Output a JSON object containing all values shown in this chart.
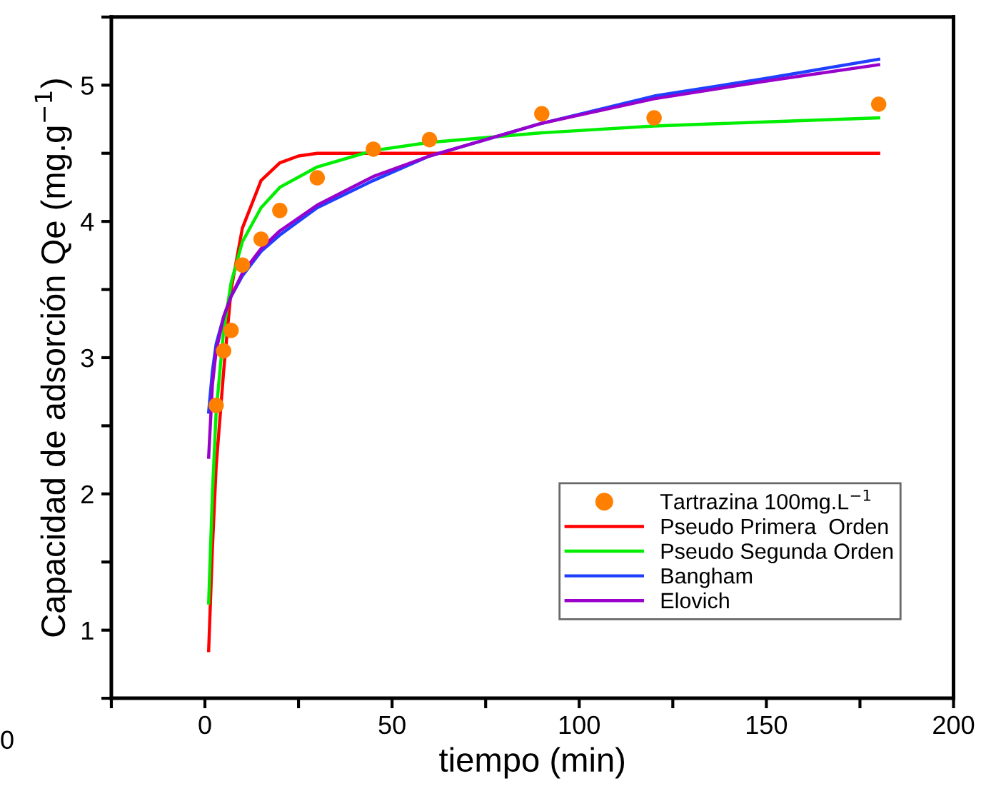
{
  "chart_data": {
    "type": "line",
    "xlabel": "tiempo (min)",
    "ylabel": "Capacidad de adsorción Qe (mg.g$^{−1}$)",
    "xlim": [
      -25,
      200
    ],
    "ylim": [
      0.5,
      5.5
    ],
    "xticks": [
      {
        "value": -25,
        "label": null
      },
      0,
      {
        "value": 25,
        "label": null
      },
      50,
      {
        "value": 75,
        "label": null
      },
      100,
      {
        "value": 125,
        "label": null
      },
      150,
      {
        "value": 175,
        "label": null
      },
      200
    ],
    "yticks": [
      {
        "value": 0.5,
        "label": null
      },
      1,
      {
        "value": 1.5,
        "label": null
      },
      2,
      {
        "value": 2.5,
        "label": null
      },
      3,
      {
        "value": 3.5,
        "label": null
      },
      4,
      {
        "value": 4.5,
        "label": null
      },
      5,
      {
        "value": 5.5,
        "label": null
      }
    ],
    "grid": false,
    "legend": "lower right",
    "annotations": [
      "0"
    ],
    "series": [
      {
        "name": "Tartrazina 100mg.L$^{−1}$",
        "type": "scatter",
        "marker": "circle",
        "color": "#ff8000",
        "x": [
          3,
          5,
          7,
          10,
          15,
          20,
          30,
          45,
          60,
          90,
          120,
          180
        ],
        "values": [
          2.65,
          3.05,
          3.2,
          3.68,
          3.87,
          4.08,
          4.32,
          4.53,
          4.6,
          4.79,
          4.76,
          4.86
        ]
      },
      {
        "name": "Pseudo Primera  Orden",
        "color": "#ff0000",
        "x": [
          1,
          2,
          3,
          5,
          7,
          10,
          15,
          20,
          25,
          30,
          60,
          90,
          120,
          150,
          180
        ],
        "values": [
          0.85,
          1.6,
          2.2,
          2.9,
          3.5,
          3.95,
          4.3,
          4.43,
          4.48,
          4.5,
          4.5,
          4.5,
          4.5,
          4.5,
          4.5
        ]
      },
      {
        "name": "Pseudo Segunda Orden",
        "color": "#00ee00",
        "x": [
          1,
          2,
          3,
          5,
          7,
          10,
          15,
          20,
          30,
          45,
          60,
          90,
          120,
          150,
          180
        ],
        "values": [
          1.2,
          2.0,
          2.6,
          3.2,
          3.55,
          3.85,
          4.1,
          4.25,
          4.4,
          4.52,
          4.58,
          4.65,
          4.7,
          4.73,
          4.76
        ]
      },
      {
        "name": "Bangham",
        "color": "#2040ff",
        "x": [
          1,
          2,
          3,
          5,
          7,
          10,
          15,
          20,
          30,
          45,
          60,
          90,
          120,
          150,
          180
        ],
        "values": [
          2.6,
          2.9,
          3.1,
          3.3,
          3.45,
          3.6,
          3.78,
          3.9,
          4.1,
          4.3,
          4.48,
          4.72,
          4.92,
          5.05,
          5.19
        ]
      },
      {
        "name": "Elovich",
        "color": "#9900cc",
        "x": [
          1,
          2,
          3,
          5,
          7,
          10,
          15,
          20,
          30,
          45,
          60,
          90,
          120,
          150,
          180
        ],
        "values": [
          2.27,
          2.8,
          3.05,
          3.3,
          3.45,
          3.62,
          3.8,
          3.93,
          4.12,
          4.33,
          4.48,
          4.72,
          4.9,
          5.03,
          5.15
        ]
      }
    ]
  }
}
